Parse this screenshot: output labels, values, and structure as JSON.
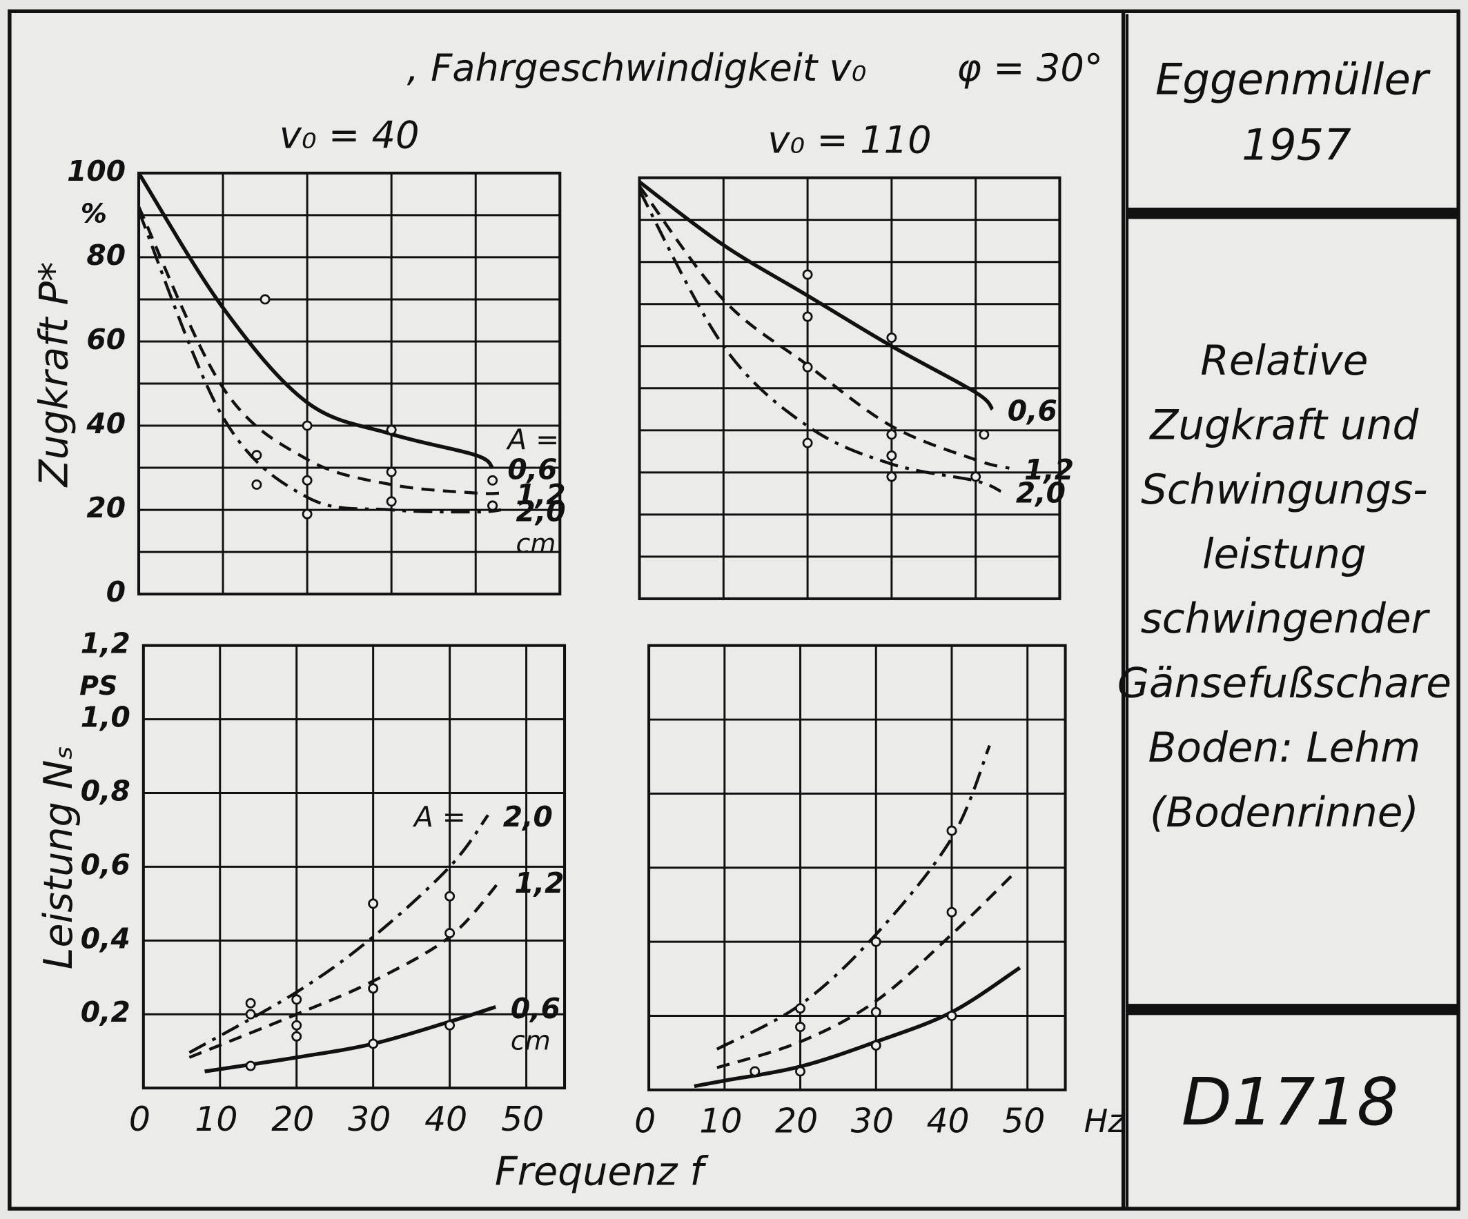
{
  "header": {
    "title": ", Fahrgeschwindigkeit v₀",
    "angle": "φ = 30°"
  },
  "x_label": "Frequenz f",
  "sidebar": {
    "author": "Eggenmüller",
    "year": "1957",
    "description": [
      "Relative",
      "Zugkraft und",
      "Schwingungs-",
      "leistung",
      "schwingender",
      "Gänsefußschare",
      "Boden: Lehm",
      "(Bodenrinne)"
    ],
    "code": "D1718"
  },
  "chart_data": [
    {
      "type": "line",
      "title": "v₀ = 40",
      "y_label": "Zugkraft P*",
      "y_unit": "%",
      "xlim": [
        0,
        50
      ],
      "ylim": [
        0,
        100
      ],
      "xticks": [
        0,
        10,
        20,
        30,
        40,
        50
      ],
      "xtick_labels": false,
      "yticks": [
        0,
        20,
        40,
        60,
        80,
        100
      ],
      "minor_yticks": [
        10,
        30,
        50,
        70,
        90
      ],
      "grid": true,
      "curve_label_prefix": "A =",
      "curve_label_unit": "cm",
      "series": [
        {
          "name": "0,6",
          "style": "solid",
          "x": [
            0,
            10,
            20,
            30,
            40,
            42
          ],
          "values": [
            100,
            68,
            45.5,
            38,
            33,
            30
          ],
          "points_x": [
            15,
            20,
            30,
            42
          ],
          "points_y": [
            70,
            40,
            39,
            27
          ]
        },
        {
          "name": "1,2",
          "style": "dashed",
          "x": [
            0,
            10,
            20,
            30,
            40,
            43
          ],
          "values": [
            92,
            49,
            32,
            26,
            24,
            24
          ],
          "points_x": [
            14,
            20,
            30,
            42
          ],
          "points_y": [
            33,
            27,
            29,
            21
          ]
        },
        {
          "name": "2,0",
          "style": "dashdot",
          "x": [
            0,
            10,
            20,
            30,
            40,
            43
          ],
          "values": [
            91,
            42,
            23,
            20,
            19.5,
            20
          ],
          "points_x": [
            14,
            20,
            30,
            42
          ],
          "points_y": [
            26,
            19,
            22,
            21
          ]
        }
      ]
    },
    {
      "type": "line",
      "title": "v₀ = 110",
      "xlim": [
        0,
        50
      ],
      "ylim": [
        0,
        100
      ],
      "xticks": [
        0,
        10,
        20,
        30,
        40,
        50
      ],
      "xtick_labels": false,
      "yticks": [
        0,
        20,
        40,
        60,
        80,
        100
      ],
      "ytick_labels": false,
      "minor_yticks": [
        10,
        30,
        50,
        70,
        90
      ],
      "grid": true,
      "series": [
        {
          "name": "0,6",
          "style": "solid",
          "x": [
            0,
            10,
            20,
            30,
            40,
            42
          ],
          "values": [
            99,
            84,
            72,
            60,
            49,
            45
          ],
          "points_x": [
            20,
            20,
            30,
            41
          ],
          "points_y": [
            77,
            67,
            62,
            39
          ]
        },
        {
          "name": "1,2",
          "style": "dashed",
          "x": [
            0,
            10,
            20,
            30,
            40,
            44
          ],
          "values": [
            98,
            71,
            55.5,
            41,
            33,
            31
          ],
          "points_x": [
            20,
            30,
            30
          ],
          "points_y": [
            55,
            34,
            39
          ]
        },
        {
          "name": "2,0",
          "style": "dashdot",
          "x": [
            0,
            10,
            20,
            30,
            40,
            43
          ],
          "values": [
            97,
            60,
            41,
            32,
            28,
            25.5
          ],
          "points_x": [
            20,
            30,
            40
          ],
          "points_y": [
            37,
            29,
            29
          ]
        }
      ]
    },
    {
      "type": "line",
      "y_label": "Leistung Nₛ",
      "y_unit": "PS",
      "xlim": [
        0,
        55
      ],
      "ylim": [
        0,
        1.2
      ],
      "xticks": [
        0,
        10,
        20,
        30,
        40,
        50
      ],
      "yticks": [
        {
          "value": 0.2,
          "label": "0,2"
        },
        {
          "value": 0.4,
          "label": "0,4"
        },
        {
          "value": 0.6,
          "label": "0,6"
        },
        {
          "value": 0.8,
          "label": "0,8"
        },
        {
          "value": 1.0,
          "label": "1,0"
        },
        {
          "value": 1.2,
          "label": "1,2"
        }
      ],
      "grid": true,
      "curve_label_prefix": "A =",
      "curve_label_unit": "cm",
      "series": [
        {
          "name": "2,0",
          "style": "dashdot",
          "x": [
            6,
            20,
            30,
            40,
            45
          ],
          "values": [
            0.096,
            0.26,
            0.41,
            0.6,
            0.74
          ],
          "points_x": [
            14,
            20,
            30,
            40
          ],
          "points_y": [
            0.23,
            0.24,
            0.5,
            0.52
          ]
        },
        {
          "name": "1,2",
          "style": "dashed",
          "x": [
            6,
            20,
            30,
            40,
            46.5
          ],
          "values": [
            0.083,
            0.2,
            0.29,
            0.41,
            0.56
          ],
          "points_x": [
            14,
            20,
            30,
            40
          ],
          "points_y": [
            0.2,
            0.17,
            0.27,
            0.42
          ]
        },
        {
          "name": "0,6",
          "style": "solid",
          "x": [
            8,
            20,
            30,
            40,
            46
          ],
          "values": [
            0.045,
            0.083,
            0.12,
            0.18,
            0.22
          ],
          "points_x": [
            14,
            20,
            30,
            40
          ],
          "points_y": [
            0.06,
            0.14,
            0.12,
            0.17
          ]
        }
      ]
    },
    {
      "type": "line",
      "xlim": [
        0,
        55
      ],
      "ylim": [
        0,
        1.2
      ],
      "xticks": [
        0,
        10,
        20,
        30,
        40,
        50
      ],
      "x_unit": "Hz",
      "yticks": [
        {
          "value": 0.2,
          "label": "0,2"
        },
        {
          "value": 0.4,
          "label": "0,4"
        },
        {
          "value": 0.6,
          "label": "0,6"
        },
        {
          "value": 0.8,
          "label": "0,8"
        },
        {
          "value": 1.0,
          "label": "1,0"
        },
        {
          "value": 1.2,
          "label": "1,2"
        }
      ],
      "ytick_labels": false,
      "grid": true,
      "series": [
        {
          "style": "dashdot",
          "x": [
            9,
            20,
            30,
            40,
            45
          ],
          "values": [
            0.11,
            0.23,
            0.42,
            0.68,
            0.93
          ],
          "points_x": [
            20,
            30,
            40
          ],
          "points_y": [
            0.22,
            0.4,
            0.7
          ]
        },
        {
          "style": "dashed",
          "x": [
            9,
            20,
            30,
            40,
            48
          ],
          "values": [
            0.06,
            0.13,
            0.24,
            0.42,
            0.58
          ],
          "points_x": [
            20,
            30,
            40
          ],
          "points_y": [
            0.17,
            0.21,
            0.48
          ]
        },
        {
          "style": "solid",
          "x": [
            6,
            10,
            20,
            30,
            40,
            49
          ],
          "values": [
            0.01,
            0.025,
            0.063,
            0.13,
            0.21,
            0.33
          ],
          "points_x": [
            14,
            20,
            30,
            40
          ],
          "points_y": [
            0.05,
            0.05,
            0.12,
            0.2
          ]
        }
      ]
    }
  ]
}
